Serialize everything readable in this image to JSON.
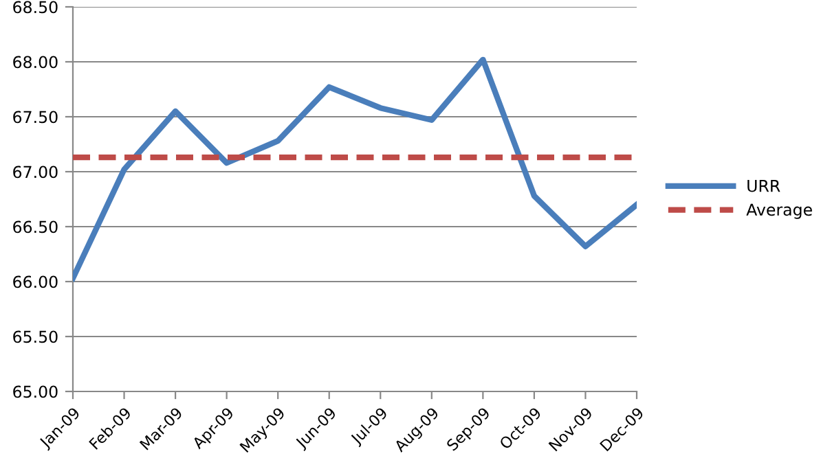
{
  "chart_data": {
    "type": "line",
    "categories": [
      "Jan-09",
      "Feb-09",
      "Mar-09",
      "Apr-09",
      "May-09",
      "Jun-09",
      "Jul-09",
      "Aug-09",
      "Sep-09",
      "Oct-09",
      "Nov-09",
      "Dec-09"
    ],
    "series": [
      {
        "name": "URR",
        "color": "#4a7ebb",
        "values": [
          66.03,
          67.02,
          67.55,
          67.08,
          67.28,
          67.77,
          67.58,
          67.47,
          68.02,
          66.78,
          66.32,
          66.7
        ]
      }
    ],
    "ref_lines": [
      {
        "axis": "y",
        "value": 67.13,
        "label": "Average",
        "color": "#be4b48",
        "line_style": "dashed"
      }
    ],
    "ylim": [
      65.0,
      68.5
    ],
    "yticks": [
      {
        "value": 65.0,
        "label": "65.00"
      },
      {
        "value": 65.5,
        "label": "65.50"
      },
      {
        "value": 66.0,
        "label": "66.00"
      },
      {
        "value": 66.5,
        "label": "66.50"
      },
      {
        "value": 67.0,
        "label": "67.00"
      },
      {
        "value": 67.5,
        "label": "67.50"
      },
      {
        "value": 68.0,
        "label": "68.00"
      },
      {
        "value": 68.5,
        "label": "68.50"
      }
    ],
    "grid": "y",
    "legend": "right",
    "marker": "none",
    "line_style": "solid"
  }
}
